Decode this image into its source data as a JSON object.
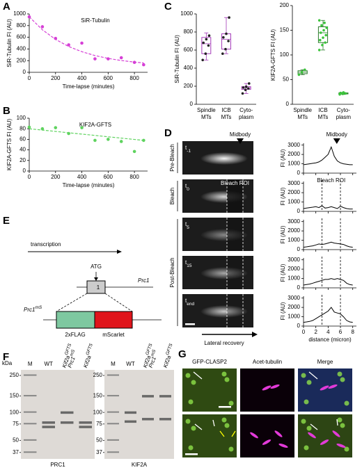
{
  "panel_labels": [
    "A",
    "B",
    "C",
    "D",
    "E",
    "F",
    "G"
  ],
  "chart_data": [
    {
      "type": "scatter",
      "title": "SiR-Tubulin",
      "xlabel": "Time-lapse (minutes)",
      "ylabel": "SiR-Tubulin FI (AU)",
      "color": "#d63fd6",
      "x": [
        0,
        100,
        200,
        300,
        400,
        500,
        600,
        700,
        800,
        870
      ],
      "values": [
        950,
        780,
        580,
        470,
        500,
        230,
        230,
        250,
        170,
        130
      ],
      "fit_values": [
        950,
        728,
        564,
        442,
        353,
        287,
        238,
        202,
        175,
        161
      ],
      "xlim": [
        0,
        900
      ],
      "xticks": [
        0,
        200,
        400,
        600,
        800
      ],
      "ylim": [
        0,
        1000
      ],
      "yticks": [
        0,
        200,
        400,
        600,
        800,
        1000
      ]
    },
    {
      "type": "scatter",
      "title": "KIF2A-GFTS",
      "xlabel": "Time-lapse (minutes)",
      "ylabel": "KIF2A-GFTS FI (AU)",
      "color": "#5fd35f",
      "x": [
        0,
        100,
        200,
        300,
        400,
        500,
        600,
        700,
        800,
        870
      ],
      "values": [
        83,
        80,
        82,
        71,
        82,
        58,
        60,
        56,
        37,
        58
      ],
      "fit_values": [
        80,
        77.5,
        75,
        72.4,
        69.9,
        67.4,
        64.8,
        62.3,
        59.8,
        58
      ],
      "xlim": [
        0,
        900
      ],
      "xticks": [
        0,
        200,
        400,
        600,
        800
      ],
      "ylim": [
        0,
        100
      ],
      "yticks": [
        0,
        20,
        40,
        60,
        80,
        100
      ]
    },
    {
      "type": "box",
      "ylabel": "SiR-Tubulin FI (AU)",
      "color": "#a43ab8",
      "point_color": "#222",
      "categories": [
        [
          "Spindle",
          "MTs"
        ],
        [
          "ICB",
          "MTs"
        ],
        [
          "Cyto-",
          "plasm"
        ]
      ],
      "boxes": [
        {
          "min": 490,
          "q1": 560,
          "median": 670,
          "q3": 740,
          "max": 790,
          "points": [
            490,
            560,
            650,
            680,
            720,
            760
          ]
        },
        {
          "min": 560,
          "q1": 610,
          "median": 720,
          "q3": 780,
          "max": 960,
          "points": [
            560,
            610,
            700,
            740,
            780,
            960
          ]
        },
        {
          "min": 120,
          "q1": 165,
          "median": 180,
          "q3": 195,
          "max": 230,
          "points": [
            120,
            160,
            175,
            185,
            195,
            230
          ]
        }
      ],
      "ylim": [
        0,
        1000
      ],
      "yticks": [
        0,
        200,
        400,
        600,
        800,
        1000
      ]
    },
    {
      "type": "box",
      "ylabel": "KIF2A-GFTS FI (AU)",
      "color": "#2a7a2a",
      "point_color": "#3cc43c",
      "categories": [
        [
          "Spindle",
          "MTs"
        ],
        [
          "ICB",
          "MTs"
        ],
        [
          "Cyto-",
          "plasm"
        ]
      ],
      "boxes": [
        {
          "min": 60,
          "q1": 62,
          "median": 65,
          "q3": 68,
          "max": 70,
          "points": [
            60,
            65,
            70
          ]
        },
        {
          "min": 110,
          "q1": 125,
          "median": 145,
          "q3": 157,
          "max": 170,
          "points": [
            110,
            120,
            125,
            130,
            135,
            140,
            145,
            150,
            155,
            160,
            165,
            170
          ]
        },
        {
          "min": 20,
          "q1": 21,
          "median": 22,
          "q3": 23,
          "max": 24,
          "points": [
            20,
            21,
            22,
            23,
            24
          ]
        }
      ],
      "ylim": [
        0,
        200
      ],
      "yticks": [
        0,
        50,
        100,
        150,
        200
      ]
    },
    {
      "type": "line",
      "ylabel": "FI (AU)",
      "xlabel": "distance (micron)",
      "annotation": "Midbody",
      "roi_label": "Bleach ROI",
      "color": "#000",
      "roi": [
        3,
        6
      ],
      "x": [
        0,
        0.5,
        1,
        1.5,
        2,
        2.5,
        3,
        3.5,
        4,
        4.5,
        5,
        5.5,
        6,
        6.5,
        7,
        7.5,
        8
      ],
      "series": [
        {
          "values": [
            900,
            950,
            1000,
            1050,
            1100,
            1200,
            1400,
            1700,
            2000,
            2800,
            1800,
            1300,
            1100,
            1000,
            950,
            900,
            900
          ]
        },
        {
          "values": [
            300,
            350,
            400,
            450,
            500,
            400,
            600,
            350,
            400,
            500,
            400,
            300,
            550,
            400,
            300,
            250,
            250
          ]
        },
        {
          "values": [
            250,
            300,
            350,
            400,
            500,
            600,
            550,
            600,
            700,
            800,
            700,
            650,
            600,
            550,
            400,
            300,
            250
          ]
        },
        {
          "values": [
            300,
            350,
            400,
            500,
            600,
            700,
            800,
            900,
            900,
            1000,
            900,
            1000,
            900,
            800,
            500,
            350,
            300
          ]
        },
        {
          "values": [
            400,
            450,
            500,
            600,
            800,
            1000,
            1200,
            1400,
            1600,
            2000,
            1500,
            1400,
            1300,
            1000,
            600,
            450,
            400
          ]
        }
      ],
      "xlim": [
        0,
        8.6
      ],
      "xticks": [
        0,
        2,
        4,
        6,
        8
      ],
      "ylim": [
        0,
        3200
      ],
      "yticks": [
        0,
        1000,
        2000,
        3000
      ]
    }
  ],
  "panel_d": {
    "midbody": "Midbody",
    "bleach_roi": "Bleach ROI",
    "lateral_recovery": "Lateral recovery",
    "phases": [
      "Pre-Bleach",
      "Bleach",
      "Post-Bleach"
    ],
    "time_labels": [
      [
        "t",
        "-1"
      ],
      [
        "t",
        "0"
      ],
      [
        "t",
        "5"
      ],
      [
        "t",
        "15"
      ],
      [
        "t",
        "end"
      ]
    ]
  },
  "panel_e": {
    "transcription": "transcription",
    "atg": "ATG",
    "exon": "1",
    "gene": "Prc1",
    "allele": [
      "Prc1",
      "mS"
    ],
    "tag1": "2xFLAG",
    "tag2": "mScarlet"
  },
  "panel_f": {
    "kda": "kDa",
    "gels": [
      {
        "name": "PRC1",
        "markers": [
          250,
          150,
          100,
          75,
          50,
          37
        ],
        "lanes": [
          [
            [
              "M"
            ]
          ],
          [
            [
              "WT"
            ]
          ],
          [
            [
              "Kif2a",
              "GFTS"
            ],
            [
              "Prc1",
              "mS"
            ]
          ],
          [
            [
              "Kif2a",
              "GFTS"
            ]
          ]
        ]
      },
      {
        "name": "KIF2A",
        "markers": [
          250,
          150,
          100,
          75,
          50,
          37
        ],
        "lanes": [
          [
            [
              "M"
            ]
          ],
          [
            [
              "WT"
            ]
          ],
          [
            [
              "Kif2a",
              "GFTS"
            ],
            [
              "Prc1",
              "mS"
            ]
          ],
          [
            [
              "Kif2a",
              "GFTS"
            ]
          ]
        ]
      }
    ]
  },
  "panel_g": {
    "columns": [
      "GFP-CLASP2",
      "Acet-tubulin",
      "Merge"
    ]
  }
}
